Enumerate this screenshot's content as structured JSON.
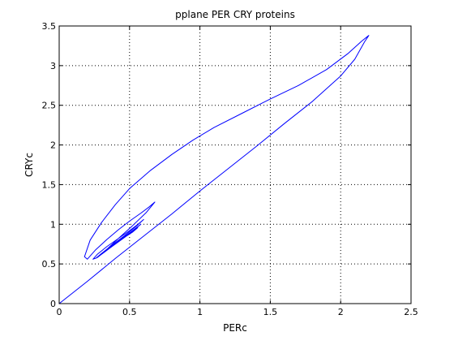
{
  "chart_data": {
    "type": "line",
    "title": "pplane PER CRY proteins",
    "xlabel": "PERc",
    "ylabel": "CRYc",
    "xlim": [
      0,
      2.5
    ],
    "ylim": [
      0,
      3.5
    ],
    "x_ticks": [
      0,
      0.5,
      1,
      1.5,
      2,
      2.5
    ],
    "y_ticks": [
      0,
      0.5,
      1,
      1.5,
      2,
      2.5,
      3,
      3.5
    ],
    "x_tick_labels": [
      "0",
      "0.5",
      "1",
      "1.5",
      "2",
      "2.5"
    ],
    "y_tick_labels": [
      "0",
      "0.5",
      "1",
      "1.5",
      "2",
      "2.5",
      "3",
      "3.5"
    ],
    "grid": "dotted",
    "line_color": "#0000ff",
    "series": [
      {
        "x": [
          0,
          0.2,
          0.4,
          0.6,
          0.8,
          1.0,
          1.2,
          1.4,
          1.6,
          1.8,
          2.0,
          2.1,
          2.17,
          2.2,
          2.15,
          2.05,
          1.9,
          1.7,
          1.5,
          1.3,
          1.1,
          0.95,
          0.8,
          0.65,
          0.5,
          0.4,
          0.3,
          0.22,
          0.18,
          0.2,
          0.26,
          0.34,
          0.42,
          0.5,
          0.58,
          0.64,
          0.68,
          0.62,
          0.52,
          0.42,
          0.33,
          0.27,
          0.24,
          0.27,
          0.34,
          0.42,
          0.5,
          0.56,
          0.6,
          0.55,
          0.46,
          0.37,
          0.3,
          0.26,
          0.28,
          0.34,
          0.41,
          0.48,
          0.54,
          0.58,
          0.52,
          0.44,
          0.36,
          0.3,
          0.27,
          0.3,
          0.36,
          0.43,
          0.5,
          0.55,
          0.5,
          0.42,
          0.35,
          0.3,
          0.28,
          0.32,
          0.38,
          0.45,
          0.52,
          0.56
        ],
        "y": [
          0,
          0.28,
          0.57,
          0.85,
          1.13,
          1.42,
          1.7,
          1.98,
          2.27,
          2.55,
          2.87,
          3.08,
          3.3,
          3.38,
          3.31,
          3.15,
          2.95,
          2.75,
          2.58,
          2.4,
          2.22,
          2.06,
          1.88,
          1.68,
          1.45,
          1.25,
          1.02,
          0.8,
          0.59,
          0.56,
          0.68,
          0.81,
          0.93,
          1.04,
          1.14,
          1.22,
          1.28,
          1.15,
          0.98,
          0.82,
          0.67,
          0.58,
          0.56,
          0.62,
          0.72,
          0.82,
          0.92,
          1.0,
          1.06,
          0.98,
          0.85,
          0.73,
          0.63,
          0.57,
          0.6,
          0.68,
          0.77,
          0.86,
          0.94,
          1.0,
          0.92,
          0.81,
          0.7,
          0.62,
          0.58,
          0.62,
          0.7,
          0.79,
          0.88,
          0.95,
          0.89,
          0.79,
          0.7,
          0.63,
          0.6,
          0.65,
          0.73,
          0.82,
          0.9,
          0.96
        ]
      }
    ]
  }
}
